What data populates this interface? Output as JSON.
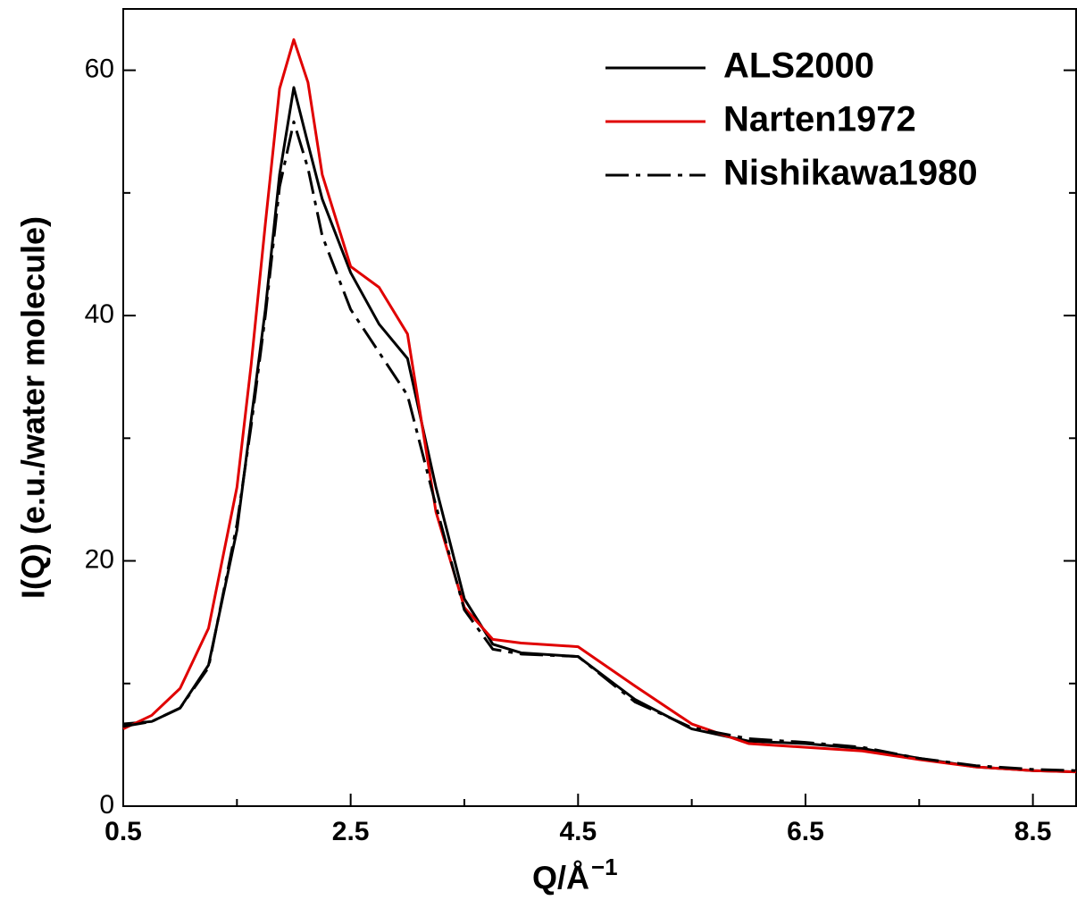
{
  "chart_data": {
    "type": "line",
    "xlabel": {
      "text": "Q/Å",
      "sup": "−1"
    },
    "ylabel": "I(Q) (e.u./water molecule)",
    "x": [
      0.5,
      0.75,
      1.0,
      1.25,
      1.5,
      1.625,
      1.75,
      1.875,
      2.0,
      2.125,
      2.25,
      2.5,
      2.75,
      3.0,
      3.25,
      3.5,
      3.75,
      4.0,
      4.5,
      5.0,
      5.5,
      6.0,
      6.5,
      7.0,
      7.5,
      8.0,
      8.5,
      8.88
    ],
    "series": [
      {
        "name": "ALS2000",
        "color": "#000000",
        "dash": "solid",
        "values": [
          6.7,
          6.9,
          8.0,
          11.5,
          22.5,
          31.5,
          40.5,
          51.5,
          58.6,
          54.0,
          49.5,
          43.5,
          39.3,
          36.5,
          26.0,
          16.9,
          13.2,
          12.5,
          12.2,
          8.7,
          6.3,
          5.3,
          5.1,
          4.7,
          3.9,
          3.2,
          2.9,
          2.8
        ]
      },
      {
        "name": "Narten1972",
        "color": "#e00000",
        "dash": "solid",
        "values": [
          6.3,
          7.4,
          9.6,
          14.5,
          26.0,
          36.0,
          47.5,
          58.5,
          62.5,
          59.0,
          51.5,
          44.0,
          42.3,
          38.5,
          24.0,
          16.2,
          13.6,
          13.3,
          13.0,
          9.8,
          6.7,
          5.1,
          4.8,
          4.5,
          3.8,
          3.2,
          2.9,
          2.8
        ]
      },
      {
        "name": "Nishikawa1980",
        "color": "#000000",
        "dash": "dashdot",
        "values": [
          6.5,
          6.9,
          8.0,
          11.3,
          23.0,
          31.0,
          40.0,
          50.5,
          55.8,
          52.0,
          46.5,
          40.5,
          37.0,
          33.5,
          24.5,
          16.0,
          12.8,
          12.4,
          12.2,
          8.5,
          6.4,
          5.5,
          5.2,
          4.8,
          3.9,
          3.3,
          3.0,
          2.9
        ]
      }
    ],
    "xlim": [
      0.5,
      8.88
    ],
    "ylim": [
      0,
      65
    ],
    "xticks": [
      0.5,
      2.5,
      4.5,
      6.5,
      8.5
    ],
    "yticks": [
      0,
      20,
      40,
      60
    ],
    "xminorticks": [
      1.5,
      3.5,
      5.5,
      7.5
    ],
    "yminorticks": [
      10,
      30,
      50
    ],
    "legend": "upper-right"
  }
}
